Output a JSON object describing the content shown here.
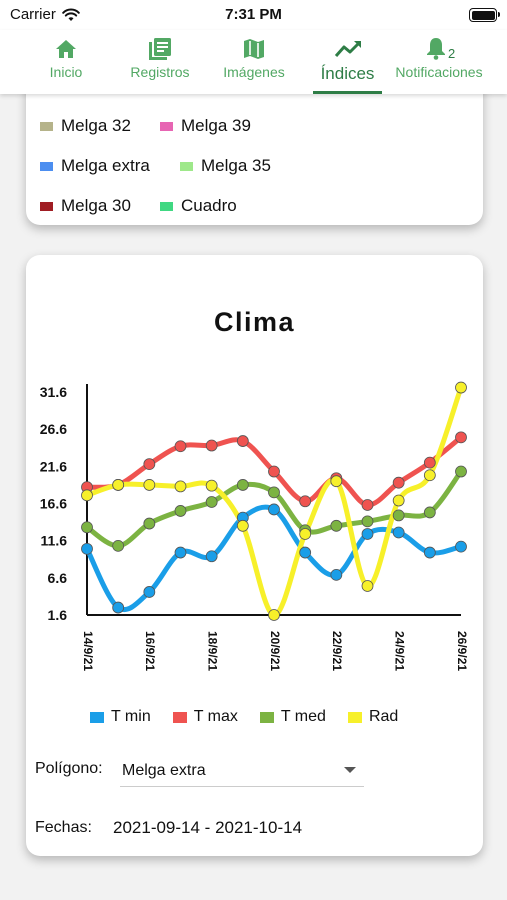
{
  "status_bar": {
    "carrier": "Carrier",
    "time": "7:31 PM"
  },
  "nav": {
    "tabs": [
      {
        "label": "Inicio",
        "icon": "home-icon"
      },
      {
        "label": "Registros",
        "icon": "registros-icon"
      },
      {
        "label": "Imágenes",
        "icon": "map-icon"
      },
      {
        "label": "Índices",
        "icon": "trending-icon",
        "active": true
      },
      {
        "label": "Notificaciones",
        "icon": "bell-icon",
        "badge": "2"
      }
    ]
  },
  "polygon_legend": [
    {
      "label": "Melga 32",
      "color": "#b5b38a"
    },
    {
      "label": "Melga 39",
      "color": "#e765b3"
    },
    {
      "label": "Melga extra",
      "color": "#4c8ef0"
    },
    {
      "label": "Melga 35",
      "color": "#9ee88a"
    },
    {
      "label": "Melga 30",
      "color": "#a01d23"
    },
    {
      "label": "Cuadro",
      "color": "#40d882"
    }
  ],
  "chart_data": {
    "type": "line",
    "title": "Clima",
    "x_tick_labels": [
      "14/9/21",
      "16/9/21",
      "18/9/21",
      "20/9/21",
      "22/9/21",
      "24/9/21",
      "26/9/21"
    ],
    "y_ticks": [
      1.6,
      6.6,
      11.6,
      16.6,
      21.6,
      26.6,
      31.6
    ],
    "ylim": [
      1.6,
      31.6
    ],
    "x": [
      0,
      1,
      2,
      3,
      4,
      5,
      6,
      7,
      8,
      9,
      10,
      11,
      12
    ],
    "series": [
      {
        "name": "T min",
        "color": "#1a9ee8",
        "values": [
          10.5,
          2.6,
          4.7,
          10.0,
          9.5,
          14.7,
          15.8,
          10.0,
          7.0,
          12.5,
          12.7,
          10.0,
          10.8
        ]
      },
      {
        "name": "T max",
        "color": "#ef5350",
        "values": [
          18.8,
          19.1,
          21.9,
          24.3,
          24.4,
          25.0,
          20.9,
          16.9,
          20.0,
          16.4,
          19.4,
          22.1,
          25.5
        ]
      },
      {
        "name": "T med",
        "color": "#7cb342",
        "values": [
          13.4,
          10.9,
          13.9,
          15.6,
          16.8,
          19.1,
          18.1,
          13.0,
          13.6,
          14.2,
          15.0,
          15.4,
          20.9
        ]
      },
      {
        "name": "Rad",
        "color": "#f7f02a",
        "values": [
          17.7,
          19.1,
          19.1,
          18.9,
          19.0,
          13.6,
          1.6,
          12.5,
          19.6,
          5.5,
          17.0,
          20.4,
          32.2
        ]
      }
    ],
    "legend_position": "bottom"
  },
  "form": {
    "polygon_label": "Polígono:",
    "polygon_value": "Melga extra",
    "dates_label": "Fechas:",
    "dates_value": "2021-09-14 - 2021-10-14"
  }
}
